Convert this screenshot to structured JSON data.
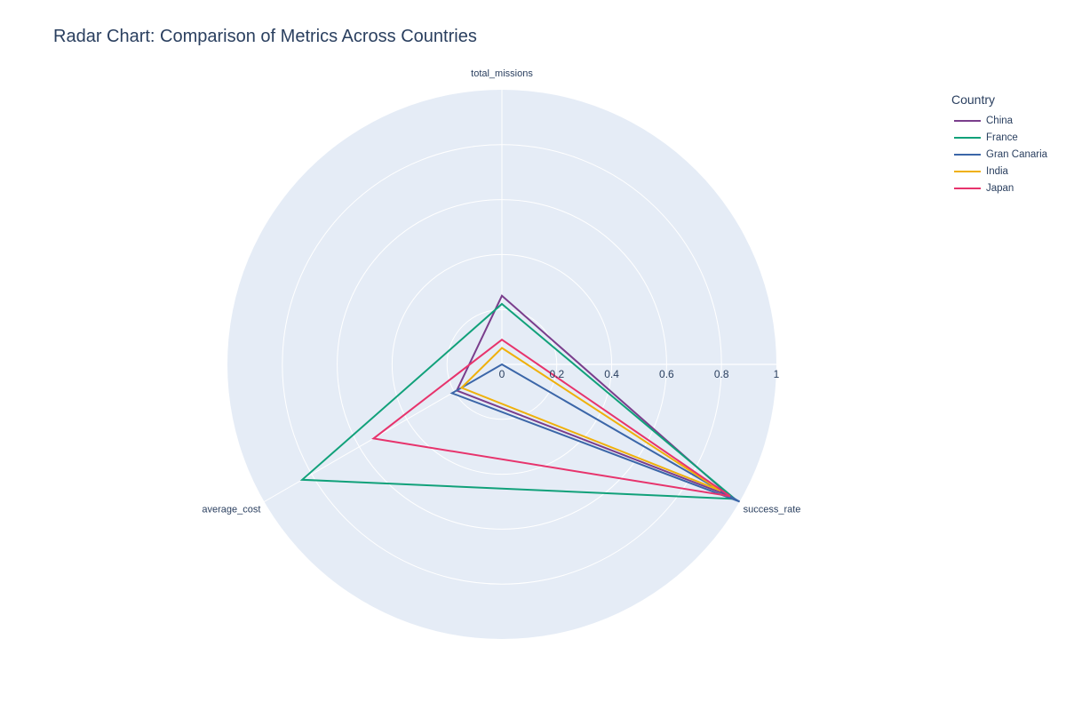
{
  "title": "Radar Chart: Comparison of Metrics Across Countries",
  "legend": {
    "title": "Country",
    "placement": "right"
  },
  "chart_data": {
    "type": "radar",
    "title": "Radar Chart: Comparison of Metrics Across Countries",
    "axes": [
      "total_missions",
      "success_rate",
      "average_cost"
    ],
    "radial_range": [
      0,
      1
    ],
    "radial_ticks": [
      "0",
      "0.2",
      "0.4",
      "0.6",
      "0.8",
      "1"
    ],
    "grid": true,
    "series": [
      {
        "name": "China",
        "color": "#7a3e8c",
        "values": [
          0.25,
          0.96,
          0.19
        ]
      },
      {
        "name": "France",
        "color": "#11a17a",
        "values": [
          0.22,
          0.98,
          0.84
        ]
      },
      {
        "name": "Gran Canaria",
        "color": "#3b66a8",
        "values": [
          0.0,
          1.0,
          0.21
        ]
      },
      {
        "name": "India",
        "color": "#efb00a",
        "values": [
          0.06,
          0.92,
          0.17
        ]
      },
      {
        "name": "Japan",
        "color": "#e7336c",
        "values": [
          0.09,
          0.96,
          0.54
        ]
      }
    ]
  }
}
